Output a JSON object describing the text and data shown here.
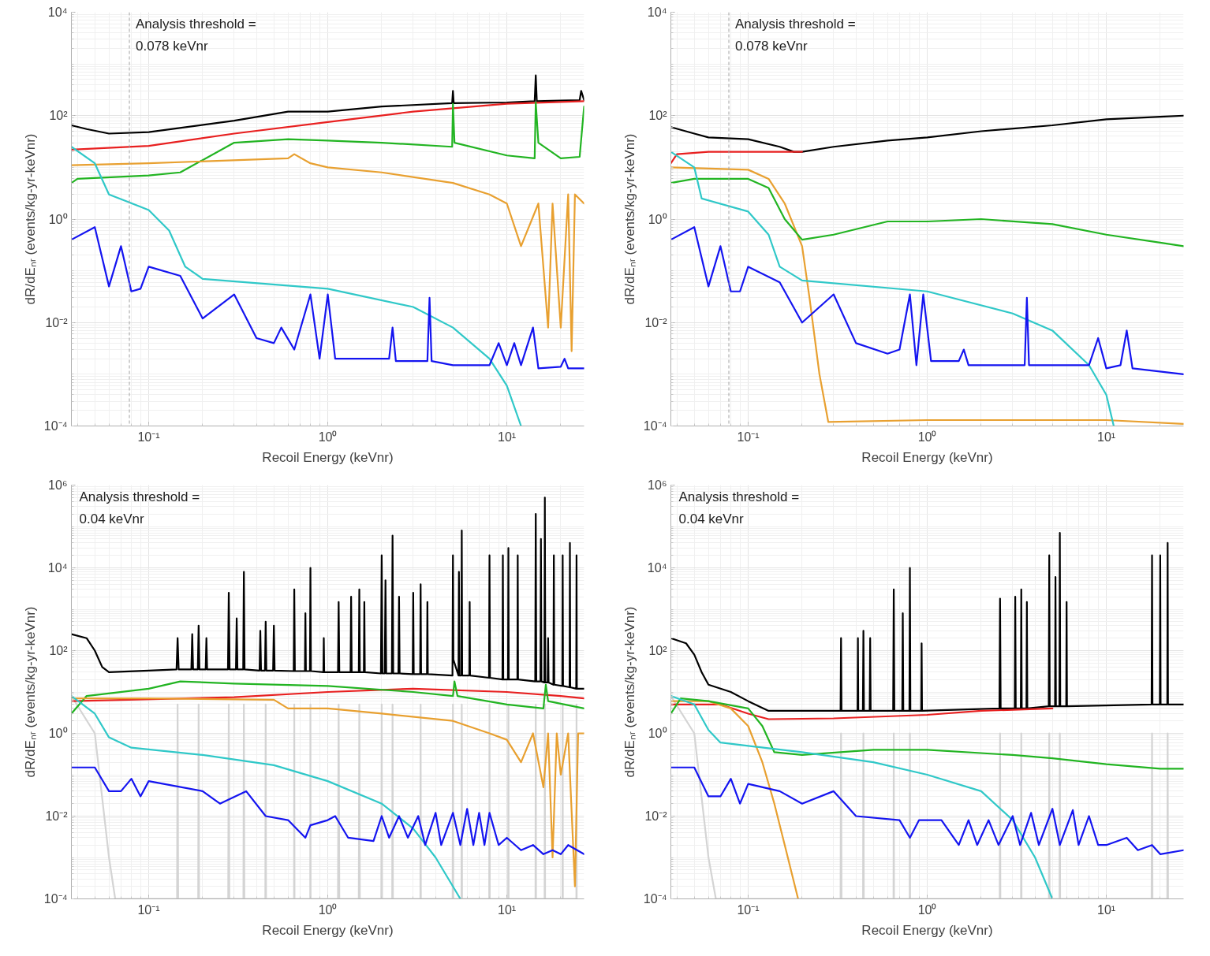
{
  "chart_data": [
    {
      "type": "line",
      "xlabel": "Recoil Energy (keVnr)",
      "ylabel": "dR/dEₙᵣ (events/kg-yr-keVnr)",
      "log": "xy",
      "grid": true,
      "xlim": [
        0.037,
        27
      ],
      "ylim": [
        0.0001,
        10000
      ],
      "xticks": [
        {
          "value": 0.1,
          "label": "10⁻¹"
        },
        {
          "value": 1,
          "label": "10⁰"
        },
        {
          "value": 10,
          "label": "10¹"
        }
      ],
      "yticks": [
        {
          "value": 0.0001,
          "label": "10⁻⁴"
        },
        {
          "value": 0.01,
          "label": "10⁻²"
        },
        {
          "value": 1,
          "label": "10⁰"
        },
        {
          "value": 100,
          "label": "10²"
        },
        {
          "value": 10000,
          "label": "10⁴"
        }
      ],
      "ref_lines": [
        {
          "axis": "x",
          "value": 0.078,
          "label": "Analysis threshold =\n0.078 keVnr",
          "color": "#a0a0a0",
          "line_style": "dashed"
        }
      ],
      "series": [
        {
          "color": "#000000",
          "x": [
            0.037,
            0.045,
            0.06,
            0.1,
            0.3,
            0.6,
            1,
            2,
            4.95,
            5.0,
            5.05,
            10,
            14.3,
            14.5,
            14.7,
            20,
            25.5,
            26,
            27
          ],
          "values": [
            65,
            55,
            45,
            48,
            80,
            120,
            120,
            150,
            175,
            300,
            175,
            180,
            190,
            600,
            190,
            195,
            200,
            300,
            200
          ]
        },
        {
          "color": "#e82020",
          "x": [
            0.037,
            0.1,
            0.3,
            1,
            3,
            10,
            27
          ],
          "values": [
            22,
            26,
            45,
            75,
            120,
            170,
            190
          ]
        },
        {
          "color": "#22b422",
          "x": [
            0.037,
            0.04,
            0.1,
            0.15,
            0.3,
            0.6,
            1,
            2,
            4.95,
            5.0,
            5.1,
            10,
            14.3,
            14.5,
            15,
            20,
            25.5,
            27
          ],
          "values": [
            5,
            6,
            7,
            8,
            30,
            35,
            33,
            30,
            25,
            170,
            30,
            17,
            15,
            180,
            30,
            15,
            16,
            150
          ]
        },
        {
          "color": "#e8a030",
          "x": [
            0.037,
            0.1,
            0.6,
            0.65,
            0.8,
            1,
            2,
            5,
            8,
            10,
            12,
            15,
            17,
            18,
            20,
            22,
            23,
            24,
            27
          ],
          "values": [
            11,
            12,
            15,
            18,
            12,
            10,
            8,
            5,
            3,
            2,
            0.3,
            2,
            0.008,
            2,
            0.008,
            3,
            0.0028,
            3,
            2
          ]
        },
        {
          "color": "#30c8c8",
          "x": [
            0.037,
            0.05,
            0.06,
            0.1,
            0.13,
            0.16,
            0.2,
            1,
            3,
            5,
            8,
            10,
            12
          ],
          "values": [
            25,
            12,
            3,
            1.5,
            0.6,
            0.12,
            0.07,
            0.045,
            0.02,
            0.008,
            0.002,
            0.0006,
            0.0001
          ]
        },
        {
          "color": "#1414f0",
          "x": [
            0.037,
            0.05,
            0.06,
            0.07,
            0.08,
            0.09,
            0.1,
            0.15,
            0.2,
            0.3,
            0.4,
            0.5,
            0.55,
            0.65,
            0.8,
            0.9,
            1.0,
            1.1,
            1.5,
            2.2,
            2.3,
            2.4,
            3.6,
            3.7,
            3.8,
            5,
            8,
            9,
            10,
            11,
            12,
            14,
            15,
            20,
            21,
            22,
            27
          ],
          "values": [
            0.4,
            0.7,
            0.05,
            0.3,
            0.04,
            0.045,
            0.12,
            0.08,
            0.012,
            0.035,
            0.005,
            0.004,
            0.008,
            0.003,
            0.035,
            0.002,
            0.035,
            0.002,
            0.002,
            0.002,
            0.008,
            0.0018,
            0.0018,
            0.03,
            0.0018,
            0.0015,
            0.0015,
            0.004,
            0.0015,
            0.004,
            0.0015,
            0.008,
            0.0013,
            0.0014,
            0.002,
            0.0013,
            0.0013
          ]
        }
      ]
    },
    {
      "type": "line",
      "xlabel": "Recoil Energy (keVnr)",
      "ylabel": "dR/dEₙᵣ (events/kg-yr-keVnr)",
      "log": "xy",
      "grid": true,
      "xlim": [
        0.037,
        27
      ],
      "ylim": [
        0.0001,
        10000
      ],
      "xticks": [
        {
          "value": 0.1,
          "label": "10⁻¹"
        },
        {
          "value": 1,
          "label": "10⁰"
        },
        {
          "value": 10,
          "label": "10¹"
        }
      ],
      "yticks": [
        {
          "value": 0.0001,
          "label": "10⁻⁴"
        },
        {
          "value": 0.01,
          "label": "10⁻²"
        },
        {
          "value": 1,
          "label": "10⁰"
        },
        {
          "value": 100,
          "label": "10²"
        },
        {
          "value": 10000,
          "label": "10⁴"
        }
      ],
      "ref_lines": [
        {
          "axis": "x",
          "value": 0.078,
          "label": "Analysis threshold =\n0.078 keVnr",
          "color": "#a0a0a0",
          "line_style": "dashed"
        }
      ],
      "series": [
        {
          "color": "#000000",
          "x": [
            0.037,
            0.05,
            0.06,
            0.1,
            0.15,
            0.18,
            0.2,
            0.3,
            0.6,
            1,
            2,
            5,
            10,
            20,
            27
          ],
          "values": [
            60,
            45,
            38,
            35,
            25,
            20,
            20,
            25,
            33,
            38,
            50,
            65,
            85,
            95,
            100
          ]
        },
        {
          "color": "#e82020",
          "x": [
            0.037,
            0.04,
            0.06,
            0.1,
            0.2
          ],
          "values": [
            12,
            18,
            20,
            20,
            20
          ]
        },
        {
          "color": "#e8a030",
          "x": [
            0.037,
            0.1,
            0.13,
            0.16,
            0.2,
            0.22,
            0.25,
            0.28,
            1,
            10,
            27
          ],
          "values": [
            10,
            9,
            6,
            2,
            0.3,
            0.03,
            0.001,
            0.00012,
            0.00013,
            0.00013,
            0.00011
          ]
        },
        {
          "color": "#22b422",
          "x": [
            0.037,
            0.05,
            0.1,
            0.13,
            0.16,
            0.2,
            0.3,
            0.6,
            1,
            2,
            5,
            10,
            20,
            27
          ],
          "values": [
            5,
            6,
            6,
            4,
            1,
            0.4,
            0.5,
            0.9,
            0.9,
            1.0,
            0.8,
            0.5,
            0.35,
            0.3
          ]
        },
        {
          "color": "#30c8c8",
          "x": [
            0.037,
            0.05,
            0.055,
            0.1,
            0.13,
            0.15,
            0.2,
            1,
            3,
            5,
            8,
            10,
            11
          ],
          "values": [
            20,
            10,
            2.5,
            1.4,
            0.5,
            0.12,
            0.065,
            0.04,
            0.015,
            0.007,
            0.0015,
            0.0004,
            0.0001
          ]
        },
        {
          "color": "#1414f0",
          "x": [
            0.037,
            0.05,
            0.06,
            0.07,
            0.08,
            0.09,
            0.1,
            0.15,
            0.2,
            0.3,
            0.4,
            0.6,
            0.7,
            0.8,
            0.87,
            0.95,
            1.05,
            1.5,
            1.6,
            1.7,
            3.5,
            3.6,
            3.7,
            8,
            9,
            10,
            12,
            13,
            14,
            27
          ],
          "values": [
            0.4,
            0.7,
            0.05,
            0.3,
            0.04,
            0.04,
            0.12,
            0.06,
            0.01,
            0.035,
            0.004,
            0.0025,
            0.003,
            0.035,
            0.0015,
            0.035,
            0.0018,
            0.0018,
            0.003,
            0.0015,
            0.0015,
            0.03,
            0.0015,
            0.0015,
            0.005,
            0.0013,
            0.0015,
            0.007,
            0.0013,
            0.001
          ]
        }
      ]
    },
    {
      "type": "line",
      "xlabel": "Recoil Energy (keVnr)",
      "ylabel": "dR/dEₙᵣ (events/kg-yr-keVnr)",
      "log": "xy",
      "grid": true,
      "xlim": [
        0.037,
        27
      ],
      "ylim": [
        0.0001,
        1000000
      ],
      "xticks": [
        {
          "value": 0.1,
          "label": "10⁻¹"
        },
        {
          "value": 1,
          "label": "10⁰"
        },
        {
          "value": 10,
          "label": "10¹"
        }
      ],
      "yticks": [
        {
          "value": 0.0001,
          "label": "10⁻⁴"
        },
        {
          "value": 0.01,
          "label": "10⁻²"
        },
        {
          "value": 1,
          "label": "10⁰"
        },
        {
          "value": 100,
          "label": "10²"
        },
        {
          "value": 10000,
          "label": "10⁴"
        },
        {
          "value": 1000000,
          "label": "10⁶"
        }
      ],
      "annotations": [
        "Analysis threshold =\n0.04 keVnr"
      ],
      "series": [
        {
          "color": "#d4d4d4",
          "x": [
            0.037,
            0.05,
            0.06,
            0.065,
            0.144,
            0.145,
            0.146,
            0.189,
            0.19,
            0.191,
            0.278,
            0.28,
            0.282,
            0.338,
            0.34,
            0.342,
            0.448,
            0.45,
            0.452,
            0.648,
            0.65,
            0.652,
            0.798,
            0.8,
            0.802,
            1.14,
            1.15,
            1.16,
            1.49,
            1.5,
            1.51,
            1.99,
            2.0,
            2.01,
            2.29,
            2.3,
            2.31,
            3.29,
            3.3,
            3.31,
            4.98,
            5.0,
            5.02,
            5.58,
            5.6,
            5.62,
            7.97,
            8.0,
            8.03,
            10.17,
            10.2,
            10.23,
            14.45,
            14.5,
            14.55,
            16.25,
            16.3,
            16.35,
            20.45,
            20.5,
            20.55,
            24.45,
            24.5,
            24.55
          ],
          "values": [
            8,
            1,
            0.001,
            0.0001,
            0.0001,
            5,
            0.0001,
            0.0001,
            5,
            0.0001,
            0.0001,
            5,
            0.0001,
            0.0001,
            5,
            0.0001,
            0.0001,
            5,
            0.0001,
            0.0001,
            5,
            0.0001,
            0.0001,
            5,
            0.0001,
            0.0001,
            5,
            0.0001,
            0.0001,
            5,
            0.0001,
            0.0001,
            5,
            0.0001,
            0.0001,
            5,
            0.0001,
            0.0001,
            5,
            0.0001,
            0.0001,
            5,
            0.0001,
            0.0001,
            5,
            0.0001,
            0.0001,
            5,
            0.0001,
            0.0001,
            5,
            0.0001,
            0.0001,
            5,
            0.0001,
            0.0001,
            5,
            0.0001,
            0.0001,
            5,
            0.0001,
            0.0001,
            5,
            0.0001
          ]
        },
        {
          "color": "#000000",
          "x": [
            0.037,
            0.045,
            0.05,
            0.055,
            0.06,
            0.1,
            0.143,
            0.145,
            0.147,
            0.173,
            0.175,
            0.177,
            0.188,
            0.19,
            0.192,
            0.208,
            0.21,
            0.212,
            0.277,
            0.28,
            0.283,
            0.307,
            0.31,
            0.313,
            0.337,
            0.34,
            0.343,
            0.416,
            0.42,
            0.424,
            0.446,
            0.45,
            0.454,
            0.495,
            0.5,
            0.505,
            0.645,
            0.65,
            0.655,
            0.745,
            0.75,
            0.755,
            0.795,
            0.8,
            0.805,
            0.945,
            0.95,
            0.955,
            1.14,
            1.15,
            1.16,
            1.34,
            1.35,
            1.36,
            1.49,
            1.5,
            1.51,
            1.59,
            1.6,
            1.61,
            1.98,
            2.0,
            2.02,
            2.08,
            2.1,
            2.12,
            2.28,
            2.3,
            2.32,
            2.48,
            2.5,
            2.52,
            2.98,
            3.0,
            3.02,
            3.28,
            3.3,
            3.32,
            3.58,
            3.6,
            3.62,
            4.97,
            5.0,
            5.03,
            5.37,
            5.4,
            5.43,
            5.57,
            5.6,
            5.63,
            6.17,
            6.2,
            6.23,
            7.95,
            8.0,
            8.05,
            9.45,
            9.5,
            9.55,
            10.15,
            10.2,
            10.25,
            11.45,
            11.5,
            11.55,
            14.4,
            14.5,
            14.6,
            15.4,
            15.5,
            15.6,
            16.2,
            16.3,
            16.4,
            16.9,
            17.0,
            17.1,
            18.2,
            18.3,
            18.4,
            20.4,
            20.5,
            20.6,
            22.4,
            22.5,
            22.6,
            24.4,
            24.5,
            24.6,
            27
          ],
          "values": [
            250,
            200,
            100,
            40,
            30,
            33,
            35,
            200,
            35,
            35,
            250,
            35,
            35,
            400,
            35,
            35,
            200,
            35,
            35,
            2500,
            35,
            35,
            600,
            35,
            35,
            8000,
            35,
            33,
            300,
            33,
            33,
            500,
            33,
            33,
            400,
            33,
            32,
            3000,
            32,
            32,
            800,
            32,
            32,
            10000,
            32,
            30,
            200,
            30,
            30,
            1500,
            30,
            30,
            2000,
            30,
            30,
            3000,
            30,
            30,
            1500,
            30,
            28,
            20000,
            28,
            28,
            5000,
            28,
            28,
            60000,
            28,
            28,
            2000,
            28,
            27,
            2500,
            27,
            27,
            4000,
            27,
            27,
            1500,
            27,
            25,
            20000,
            60,
            25,
            8000,
            25,
            25,
            80000,
            25,
            25,
            1500,
            25,
            22,
            20000,
            22,
            20,
            20000,
            20,
            20,
            30000,
            20,
            20,
            20000,
            20,
            18,
            200000,
            18,
            18,
            50000,
            18,
            17,
            500000,
            17,
            17,
            200,
            17,
            15,
            20000,
            15,
            14,
            20000,
            14,
            13,
            40000,
            13,
            12,
            20000,
            12,
            12
          ]
        },
        {
          "color": "#e82020",
          "x": [
            0.037,
            0.3,
            1,
            3,
            10,
            20,
            27
          ],
          "values": [
            6,
            7.5,
            10,
            12,
            10,
            8,
            7
          ]
        },
        {
          "color": "#22b422",
          "x": [
            0.037,
            0.045,
            0.1,
            0.15,
            0.3,
            1,
            3,
            5,
            5.1,
            5.3,
            10,
            16,
            16.5,
            17,
            27
          ],
          "values": [
            3,
            8,
            12,
            18,
            16,
            14,
            10,
            8,
            18,
            8,
            5,
            4,
            15,
            6,
            4
          ]
        },
        {
          "color": "#e8a030",
          "x": [
            0.037,
            0.1,
            0.5,
            0.6,
            1,
            2,
            5,
            8,
            10,
            12,
            14,
            16,
            17,
            18,
            19,
            20,
            22,
            24,
            25,
            27
          ],
          "values": [
            7,
            7,
            6.5,
            4,
            4,
            3,
            2,
            1,
            0.7,
            0.2,
            1,
            0.05,
            1,
            0.001,
            1,
            0.1,
            1,
            0.0002,
            1,
            1
          ]
        },
        {
          "color": "#30c8c8",
          "x": [
            0.037,
            0.05,
            0.06,
            0.08,
            0.2,
            0.5,
            1,
            2,
            3,
            4,
            5,
            5.5
          ],
          "values": [
            8,
            3,
            0.8,
            0.45,
            0.3,
            0.17,
            0.07,
            0.02,
            0.005,
            0.001,
            0.0002,
            0.0001
          ]
        },
        {
          "color": "#1414f0",
          "x": [
            0.037,
            0.05,
            0.06,
            0.07,
            0.08,
            0.09,
            0.1,
            0.2,
            0.25,
            0.35,
            0.45,
            0.6,
            0.75,
            0.8,
            1,
            1.1,
            1.3,
            1.8,
            2.0,
            2.2,
            2.5,
            2.8,
            3.2,
            3.5,
            4,
            4.3,
            5,
            5.5,
            6,
            6.5,
            7,
            7.5,
            8,
            9,
            10,
            12,
            14,
            16,
            18,
            20,
            22,
            27
          ],
          "values": [
            0.15,
            0.15,
            0.04,
            0.04,
            0.08,
            0.03,
            0.07,
            0.04,
            0.02,
            0.04,
            0.01,
            0.008,
            0.003,
            0.006,
            0.008,
            0.01,
            0.003,
            0.0025,
            0.01,
            0.003,
            0.01,
            0.003,
            0.01,
            0.002,
            0.012,
            0.002,
            0.012,
            0.002,
            0.015,
            0.002,
            0.012,
            0.002,
            0.012,
            0.002,
            0.003,
            0.0015,
            0.002,
            0.0012,
            0.0015,
            0.0012,
            0.002,
            0.0012
          ]
        }
      ]
    },
    {
      "type": "line",
      "xlabel": "Recoil Energy (keVnr)",
      "ylabel": "dR/dEₙᵣ (events/kg-yr-keVnr)",
      "log": "xy",
      "grid": true,
      "xlim": [
        0.037,
        27
      ],
      "ylim": [
        0.0001,
        1000000
      ],
      "xticks": [
        {
          "value": 0.1,
          "label": "10⁻¹"
        },
        {
          "value": 1,
          "label": "10⁰"
        },
        {
          "value": 10,
          "label": "10¹"
        }
      ],
      "yticks": [
        {
          "value": 0.0001,
          "label": "10⁻⁴"
        },
        {
          "value": 0.01,
          "label": "10⁻²"
        },
        {
          "value": 1,
          "label": "10⁰"
        },
        {
          "value": 100,
          "label": "10²"
        },
        {
          "value": 10000,
          "label": "10⁴"
        },
        {
          "value": 1000000,
          "label": "10⁶"
        }
      ],
      "annotations": [
        "Analysis threshold =\n0.04 keVnr"
      ],
      "series": [
        {
          "color": "#d4d4d4",
          "x": [
            0.037,
            0.05,
            0.06,
            0.066,
            0.328,
            0.33,
            0.332,
            0.438,
            0.44,
            0.442,
            0.648,
            0.65,
            0.652,
            0.798,
            0.8,
            0.802,
            2.54,
            2.55,
            2.56,
            3.34,
            3.35,
            3.36,
            4.78,
            4.8,
            4.82,
            5.48,
            5.5,
            5.52,
            17.9,
            18,
            18.1,
            21.9,
            22,
            22.1
          ],
          "values": [
            8,
            1,
            0.001,
            0.0001,
            0.0001,
            1,
            0.0001,
            0.0001,
            1,
            0.0001,
            0.0001,
            1,
            0.0001,
            0.0001,
            1,
            0.0001,
            0.0001,
            1,
            0.0001,
            0.0001,
            1,
            0.0001,
            0.0001,
            1,
            0.0001,
            0.0001,
            1,
            0.0001,
            0.0001,
            1,
            0.0001,
            0.0001,
            1,
            0.0001
          ]
        },
        {
          "color": "#000000",
          "x": [
            0.037,
            0.045,
            0.05,
            0.055,
            0.06,
            0.08,
            0.1,
            0.13,
            0.328,
            0.33,
            0.332,
            0.408,
            0.41,
            0.412,
            0.437,
            0.44,
            0.443,
            0.477,
            0.48,
            0.483,
            0.645,
            0.65,
            0.655,
            0.725,
            0.73,
            0.735,
            0.795,
            0.8,
            0.805,
            0.925,
            0.93,
            0.935,
            2.53,
            2.55,
            2.57,
            3.08,
            3.1,
            3.12,
            3.33,
            3.35,
            3.37,
            3.58,
            3.6,
            3.62,
            4.77,
            4.8,
            4.83,
            5.17,
            5.2,
            5.23,
            5.47,
            5.5,
            5.53,
            5.97,
            6.0,
            6.03,
            17.9,
            18,
            18.1,
            19.9,
            20,
            20.1,
            21.9,
            22,
            22.1,
            27
          ],
          "values": [
            200,
            150,
            80,
            30,
            15,
            10,
            6,
            3.5,
            3.5,
            200,
            3.5,
            3.5,
            200,
            3.5,
            3.5,
            300,
            3.5,
            3.5,
            200,
            3.5,
            3.5,
            3000,
            3.5,
            3.5,
            800,
            3.5,
            3.5,
            10000,
            3.5,
            3.5,
            150,
            3.5,
            4,
            1800,
            4,
            4,
            2000,
            4,
            4,
            3000,
            4,
            4,
            1500,
            4,
            4.5,
            20000,
            4.5,
            4.5,
            6000,
            4.5,
            4.5,
            70000,
            4.5,
            4.5,
            1500,
            4.5,
            5,
            20000,
            5,
            5,
            20000,
            5,
            5,
            40000,
            5,
            5
          ]
        },
        {
          "color": "#e82020",
          "x": [
            0.037,
            0.07,
            0.1,
            0.13,
            0.3,
            1,
            2,
            5
          ],
          "values": [
            5,
            5,
            3,
            2.2,
            2.3,
            2.8,
            3.5,
            4
          ]
        },
        {
          "color": "#e8a030",
          "x": [
            0.037,
            0.06,
            0.08,
            0.1,
            0.12,
            0.14,
            0.16,
            0.19
          ],
          "values": [
            6,
            6,
            4,
            1.5,
            0.2,
            0.02,
            0.002,
            0.0001
          ]
        },
        {
          "color": "#22b422",
          "x": [
            0.037,
            0.042,
            0.06,
            0.1,
            0.12,
            0.14,
            0.2,
            0.5,
            1,
            3,
            5,
            10,
            20,
            27
          ],
          "values": [
            3,
            7,
            6,
            4,
            1.5,
            0.35,
            0.3,
            0.4,
            0.4,
            0.3,
            0.25,
            0.18,
            0.14,
            0.14
          ]
        },
        {
          "color": "#30c8c8",
          "x": [
            0.037,
            0.05,
            0.06,
            0.07,
            0.1,
            0.2,
            0.5,
            1,
            2,
            3,
            4,
            5
          ],
          "values": [
            8,
            5,
            1.2,
            0.6,
            0.5,
            0.35,
            0.2,
            0.1,
            0.04,
            0.008,
            0.001,
            0.0001
          ]
        },
        {
          "color": "#1414f0",
          "x": [
            0.037,
            0.05,
            0.06,
            0.07,
            0.08,
            0.09,
            0.1,
            0.15,
            0.2,
            0.3,
            0.4,
            0.7,
            0.8,
            0.9,
            1.2,
            1.5,
            1.7,
            1.9,
            2.2,
            2.5,
            3,
            3.3,
            3.8,
            4.2,
            5,
            5.5,
            6.5,
            7,
            8,
            9,
            10,
            13,
            15,
            18,
            20,
            27
          ],
          "values": [
            0.15,
            0.15,
            0.03,
            0.03,
            0.08,
            0.02,
            0.06,
            0.04,
            0.02,
            0.04,
            0.01,
            0.008,
            0.003,
            0.008,
            0.008,
            0.002,
            0.008,
            0.002,
            0.008,
            0.002,
            0.01,
            0.002,
            0.012,
            0.002,
            0.015,
            0.002,
            0.014,
            0.002,
            0.01,
            0.002,
            0.002,
            0.003,
            0.0015,
            0.002,
            0.0012,
            0.0015
          ]
        }
      ]
    }
  ]
}
